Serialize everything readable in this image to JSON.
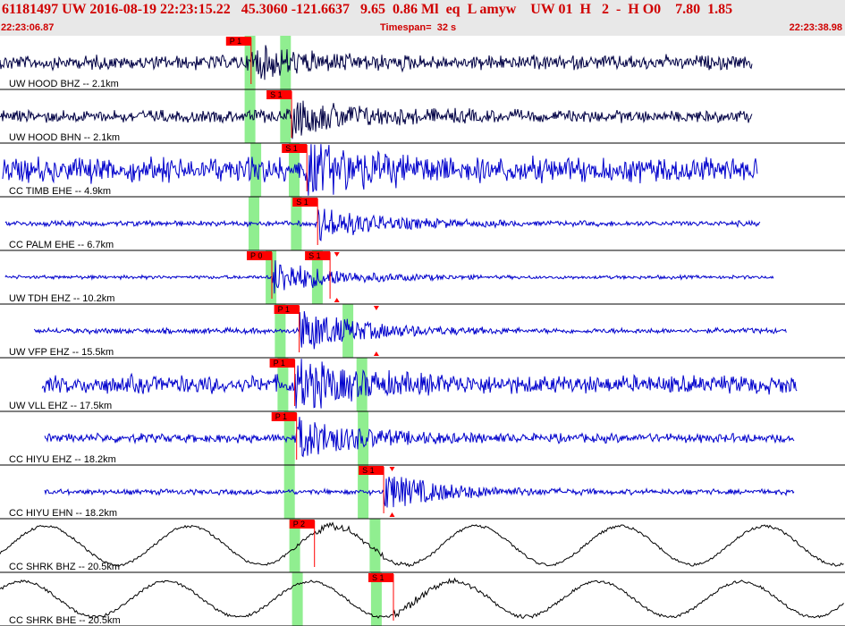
{
  "header": {
    "event_line": "61181497 UW 2016-08-19 22:23:15.22   45.3060 -121.6637   9.65  0.86 Ml  eq  L amyw    UW 01  H   2  -  H O0    7.80  1.85",
    "time_start": "22:23:06.87",
    "timespan_label": "Timespan=",
    "timespan_value": "32 s",
    "time_end": "22:23:38.98"
  },
  "colors": {
    "header_text": "#d00000",
    "header_bg": "#e8e8e8",
    "trace_short_period": "#0000cc",
    "trace_broadband": "#000022",
    "pick_flag": "#ff0000",
    "theoretical_band": "#90ee90"
  },
  "trace_window_seconds": [
    0,
    32.11
  ],
  "channels": [
    {
      "label": "UW HOOD BHZ -- 2.1km",
      "color": "#000044",
      "style": "hf",
      "amp": 8,
      "burst_amp": 14,
      "start_s": 0.0,
      "end_s": 28.6,
      "picks": [
        {
          "label": "P 1",
          "t_s": 9.54
        }
      ],
      "bands_s": [
        9.5,
        10.85
      ],
      "arrivals_s": []
    },
    {
      "label": "UW HOOD BHN -- 2.1km",
      "color": "#000044",
      "style": "hf",
      "amp": 7,
      "burst_amp": 18,
      "start_s": 0.0,
      "end_s": 28.6,
      "picks": [
        {
          "label": "S 1",
          "t_s": 11.08
        }
      ],
      "bands_s": [
        9.5,
        10.85
      ],
      "arrivals_s": []
    },
    {
      "label": "CC TIMB EHE -- 4.9km",
      "color": "#0000cc",
      "style": "hf",
      "amp": 14,
      "burst_amp": 22,
      "start_s": 0.1,
      "end_s": 28.8,
      "picks": [
        {
          "label": "S 1",
          "t_s": 11.66
        }
      ],
      "bands_s": [
        9.72,
        11.18
      ],
      "arrivals_s": []
    },
    {
      "label": "CC PALM EHE -- 6.7km",
      "color": "#0000cc",
      "style": "hf",
      "amp": 3,
      "burst_amp": 18,
      "start_s": 0.2,
      "end_s": 28.9,
      "picks": [
        {
          "label": "S 1",
          "t_s": 12.07
        }
      ],
      "bands_s": [
        9.65,
        11.26
      ],
      "arrivals_s": []
    },
    {
      "label": "UW TDH EHZ -- 10.2km",
      "color": "#0000cc",
      "style": "hf",
      "amp": 2,
      "burst_amp": 20,
      "start_s": 0.2,
      "end_s": 29.4,
      "picks": [
        {
          "label": "P 0",
          "t_s": 10.33
        },
        {
          "label": "S 1",
          "t_s": 12.54
        }
      ],
      "bands_s": [
        10.3,
        12.06
      ],
      "arrivals_s": [
        12.8
      ]
    },
    {
      "label": "UW VFP EHZ -- 15.5km",
      "color": "#0000cc",
      "style": "hf",
      "amp": 3,
      "burst_amp": 24,
      "start_s": 1.3,
      "end_s": 29.9,
      "picks": [
        {
          "label": "P 1",
          "t_s": 11.37
        }
      ],
      "bands_s": [
        10.65,
        13.22
      ],
      "arrivals_s": [
        14.3
      ]
    },
    {
      "label": "UW VLL EHZ -- 17.5km",
      "color": "#0000cc",
      "style": "hf",
      "amp": 10,
      "burst_amp": 24,
      "start_s": 1.6,
      "end_s": 30.3,
      "picks": [
        {
          "label": "P 1",
          "t_s": 11.2
        }
      ],
      "bands_s": [
        10.75,
        13.75
      ],
      "arrivals_s": []
    },
    {
      "label": "CC HIYU EHZ -- 18.2km",
      "color": "#0000cc",
      "style": "hf",
      "amp": 5,
      "burst_amp": 22,
      "start_s": 1.7,
      "end_s": 30.2,
      "picks": [
        {
          "label": "P 1",
          "t_s": 11.27
        }
      ],
      "bands_s": [
        11.0,
        13.8
      ],
      "arrivals_s": []
    },
    {
      "label": "CC HIYU EHN -- 18.2km",
      "color": "#0000cc",
      "style": "hf",
      "amp": 3,
      "burst_amp": 20,
      "start_s": 1.7,
      "end_s": 30.2,
      "picks": [
        {
          "label": "S 1",
          "t_s": 14.58
        }
      ],
      "bands_s": [
        11.0,
        13.8
      ],
      "arrivals_s": [
        14.9
      ]
    },
    {
      "label": "CC SHRK BHZ -- 20.5km",
      "color": "#000000",
      "style": "lp",
      "amp": 24,
      "burst_amp": 10,
      "start_s": 0.0,
      "end_s": 32.1,
      "picks": [
        {
          "label": "P 2",
          "t_s": 11.95
        }
      ],
      "bands_s": [
        11.2,
        14.25
      ],
      "arrivals_s": []
    },
    {
      "label": "CC SHRK BHE -- 20.5km",
      "color": "#000000",
      "style": "lp",
      "amp": 22,
      "burst_amp": 10,
      "start_s": 0.0,
      "end_s": 32.1,
      "picks": [
        {
          "label": "S 1",
          "t_s": 14.95
        }
      ],
      "bands_s": [
        11.3,
        14.3
      ],
      "arrivals_s": []
    }
  ]
}
